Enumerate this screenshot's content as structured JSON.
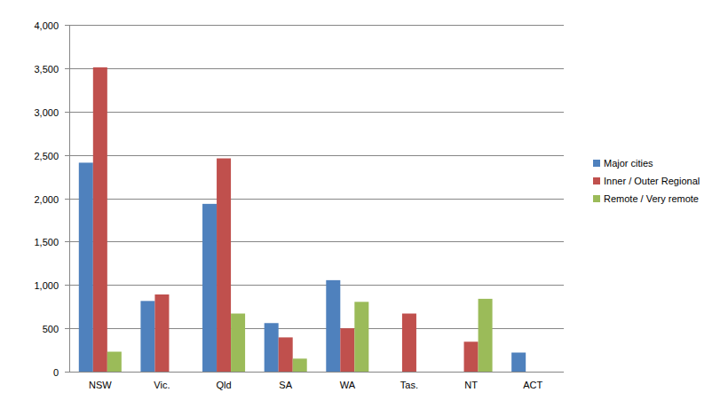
{
  "chart_data": {
    "type": "bar",
    "categories": [
      "NSW",
      "Vic.",
      "Qld",
      "SA",
      "WA",
      "Tas.",
      "NT",
      "ACT"
    ],
    "series": [
      {
        "name": "Major cities",
        "color": "#4f81bd",
        "values": [
          2410,
          815,
          1935,
          560,
          1055,
          0,
          0,
          220
        ]
      },
      {
        "name": "Inner / Outer Regional",
        "color": "#c0504d",
        "values": [
          3510,
          890,
          2460,
          395,
          500,
          670,
          345,
          0
        ]
      },
      {
        "name": "Remote / Very remote",
        "color": "#9bbb59",
        "values": [
          230,
          0,
          670,
          150,
          805,
          0,
          840,
          0
        ]
      }
    ],
    "ylim": [
      0,
      4000
    ],
    "yticks": [
      0,
      500,
      {
        "value": 1000,
        "label": "1,000"
      },
      {
        "value": 1500,
        "label": "1,500"
      },
      {
        "value": 2000,
        "label": "2,000"
      },
      {
        "value": 2500,
        "label": "2,500"
      },
      {
        "value": 3000,
        "label": "3,000"
      },
      {
        "value": 3500,
        "label": "3,500"
      },
      {
        "value": 4000,
        "label": "4,000"
      }
    ],
    "grid": true,
    "legend": "right"
  }
}
